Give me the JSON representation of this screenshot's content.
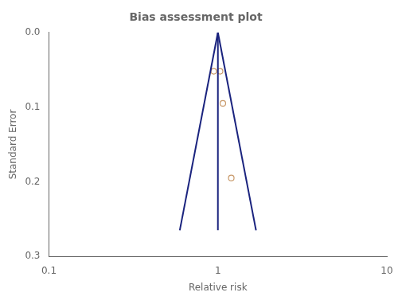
{
  "chart_data": {
    "type": "scatter",
    "title": "Bias assessment plot",
    "x_label": "Relative risk",
    "y_label": "Standard Error",
    "log": "x",
    "grid": false,
    "xlim": [
      0.1,
      10
    ],
    "xticks": [
      0.1,
      1,
      10
    ],
    "ylim": [
      0.3,
      0.0
    ],
    "yticks": [
      {
        "value": 0.0,
        "label": "0.0"
      },
      0.1,
      0.2,
      0.3
    ],
    "series": [
      {
        "type": "line",
        "color": "#1a237e",
        "line_style": "solid",
        "x": [
          1.0,
          0.5949
        ],
        "values": [
          0.0,
          0.265
        ]
      },
      {
        "type": "line",
        "color": "#1a237e",
        "line_style": "solid",
        "x": [
          1.0,
          1.681
        ],
        "values": [
          0.0,
          0.265
        ]
      },
      {
        "type": "line",
        "color": "#1a237e",
        "line_style": "solid",
        "x": [
          1.0,
          1.0
        ],
        "values": [
          0.0,
          0.265
        ]
      },
      {
        "type": "scatter",
        "color": "#c8996a",
        "marker": "open_circle",
        "x": [
          0.945,
          1.03,
          1.07,
          1.2
        ],
        "values": [
          0.052,
          0.052,
          0.095,
          0.195
        ]
      }
    ]
  }
}
